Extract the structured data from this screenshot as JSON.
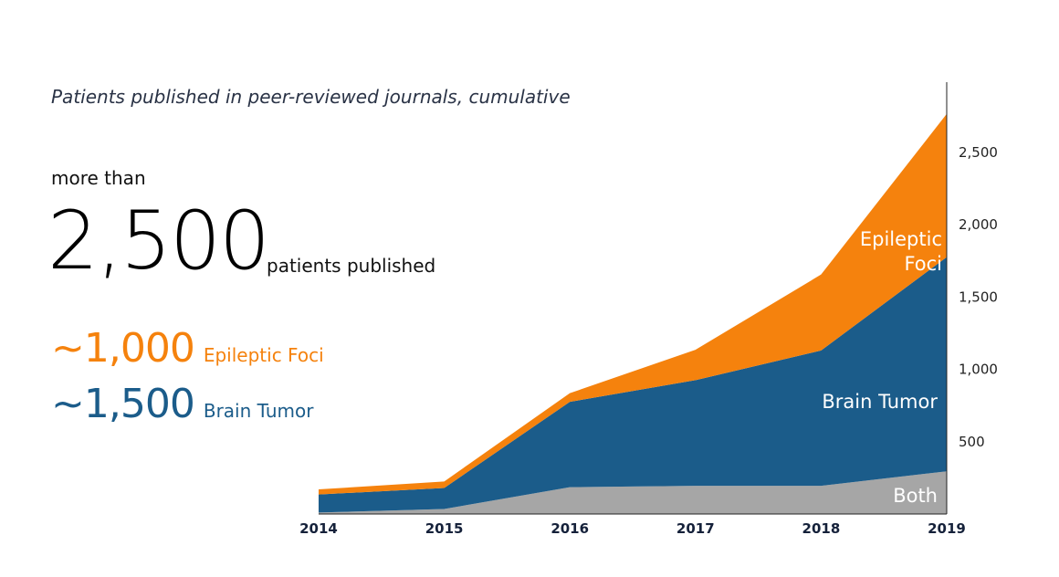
{
  "header": {
    "subtitle": "Patients published in peer-reviewed journals, cumulative"
  },
  "headline": {
    "prefix": "more than",
    "number": "2,500",
    "suffix": "patients published"
  },
  "stats": [
    {
      "value": "~1,000",
      "label": "Epileptic Foci",
      "color": "#f5820d"
    },
    {
      "value": "~1,500",
      "label": "Brain Tumor",
      "color": "#1b5c8a"
    }
  ],
  "chart_data": {
    "type": "area",
    "stacked": true,
    "x": [
      "2014",
      "2015",
      "2016",
      "2017",
      "2018",
      "2019"
    ],
    "series": [
      {
        "name": "Both",
        "color": "#a6a6a6",
        "values": [
          10,
          35,
          185,
          195,
          195,
          295
        ]
      },
      {
        "name": "Brain Tumor",
        "color": "#1b5c8a",
        "values": [
          125,
          145,
          590,
          730,
          935,
          1480
        ]
      },
      {
        "name": "Epileptic Foci",
        "color": "#f5820d",
        "values": [
          35,
          45,
          60,
          210,
          525,
          990
        ]
      }
    ],
    "ylim": [
      0,
      3000
    ],
    "yticks": [
      "500",
      "1,000",
      "1,500",
      "2,000",
      "2,500"
    ],
    "ytick_values": [
      500,
      1000,
      1500,
      2000,
      2500
    ],
    "yaxis_side": "right",
    "grid": false
  }
}
